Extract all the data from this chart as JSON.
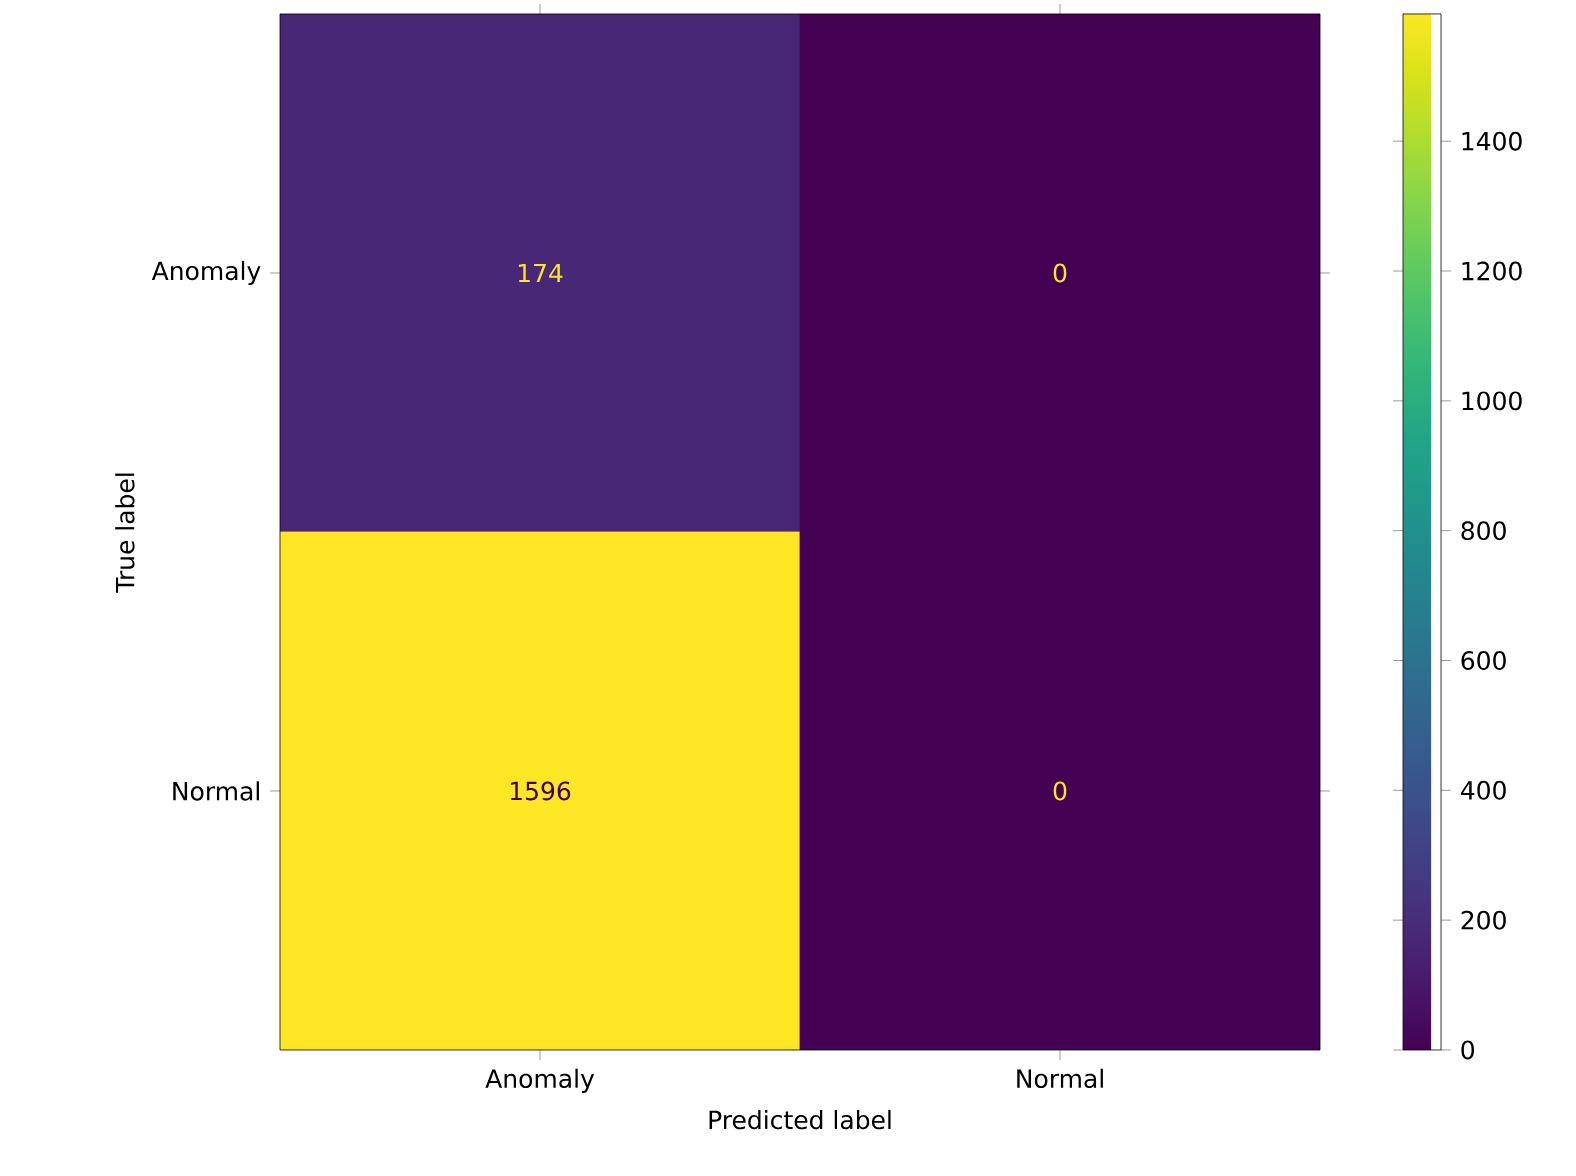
{
  "chart_data": {
    "type": "heatmap",
    "xlabel": "Predicted label",
    "ylabel": "True label",
    "categories": [
      "Anomaly",
      "Normal"
    ],
    "y_categories": [
      "Anomaly",
      "Normal"
    ],
    "cells": [
      [
        174,
        0
      ],
      [
        1596,
        0
      ]
    ],
    "data_labels": true,
    "clim": [
      0,
      1596
    ],
    "cticks": [
      0,
      200,
      400,
      600,
      800,
      1000,
      1200,
      1400
    ]
  }
}
